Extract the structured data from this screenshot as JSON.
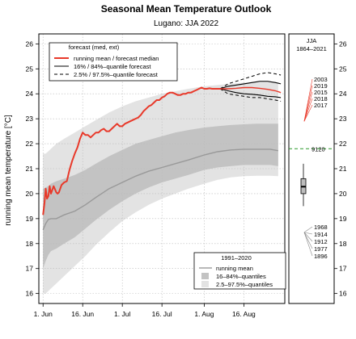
{
  "chart_data": {
    "type": "line",
    "title": "Seasonal Mean Temperature Outlook",
    "subtitle": "Lugano: JJA 2022",
    "ylabel": "running mean temperature [°C]",
    "ylim": [
      15.6,
      26.4
    ],
    "yticks": [
      16,
      17,
      18,
      19,
      20,
      21,
      22,
      23,
      24,
      25,
      26
    ],
    "xlim": [
      -1.6,
      91.5
    ],
    "x_ticks": [
      {
        "day": 0,
        "label": "1. Jun"
      },
      {
        "day": 15,
        "label": "16. Jun"
      },
      {
        "day": 30,
        "label": "1. Jul"
      },
      {
        "day": 45,
        "label": "16. Jul"
      },
      {
        "day": 61,
        "label": "1. Aug"
      },
      {
        "day": 76,
        "label": "16. Aug"
      }
    ],
    "legend_forecast": {
      "title": "forecast (med, ext)",
      "entries": [
        {
          "label": "running mean / forecast median",
          "color": "#e8392a",
          "style": "solid"
        },
        {
          "label": "16% / 84%–quantile forecast",
          "color": "#000000",
          "style": "solid"
        },
        {
          "label": "2.5% / 97.5%–quantile forecast",
          "color": "#000000",
          "style": "dashed"
        }
      ]
    },
    "legend_climate": {
      "title": "1991–2020",
      "entries": [
        {
          "label": "running mean",
          "color": "#999999",
          "kind": "line"
        },
        {
          "label": "16–84%–quantiles",
          "color": "#c3c3c3",
          "kind": "box"
        },
        {
          "label": "2.5–97.5%–quantiles",
          "color": "#e3e3e3",
          "kind": "box"
        }
      ]
    },
    "colors": {
      "observed": "#e8392a",
      "band_outer": "#e3e3e3",
      "band_inner": "#c3c3c3",
      "climate_mean": "#999999",
      "ref_line": "#2a9a2a",
      "rank_high": "#e8392a",
      "rank_low": "#888888",
      "grid": "#bbbbbb"
    },
    "climate": {
      "x": [
        0,
        1,
        2,
        3,
        5,
        8,
        12,
        16,
        20,
        25,
        30,
        35,
        40,
        45,
        50,
        55,
        61,
        66,
        71,
        76,
        81,
        86,
        89
      ],
      "mean": [
        18.55,
        18.8,
        18.97,
        19.0,
        19.0,
        19.15,
        19.3,
        19.55,
        19.85,
        20.2,
        20.45,
        20.7,
        20.9,
        21.05,
        21.2,
        21.35,
        21.55,
        21.68,
        21.75,
        21.78,
        21.78,
        21.78,
        21.72
      ],
      "q16": [
        17.0,
        17.3,
        17.55,
        17.7,
        17.8,
        18.0,
        18.25,
        18.6,
        18.95,
        19.35,
        19.7,
        20.0,
        20.25,
        20.45,
        20.6,
        20.75,
        20.95,
        21.05,
        21.1,
        21.15,
        21.15,
        21.15,
        21.1
      ],
      "q84": [
        20.2,
        20.25,
        20.3,
        20.4,
        20.5,
        20.6,
        20.75,
        20.95,
        21.2,
        21.5,
        21.75,
        22.0,
        22.15,
        22.3,
        22.45,
        22.55,
        22.65,
        22.7,
        22.75,
        22.78,
        22.8,
        22.8,
        22.8
      ],
      "q025": [
        16.0,
        16.0,
        16.1,
        16.2,
        16.4,
        16.7,
        17.1,
        17.5,
        17.95,
        18.45,
        18.9,
        19.25,
        19.55,
        19.8,
        20.0,
        20.2,
        20.4,
        20.55,
        20.65,
        20.7,
        20.72,
        20.72,
        20.7
      ],
      "q975": [
        21.6,
        21.6,
        21.7,
        21.8,
        22.0,
        22.2,
        22.45,
        22.7,
        22.95,
        23.25,
        23.5,
        23.7,
        23.85,
        24.0,
        24.1,
        24.2,
        24.3,
        24.35,
        24.4,
        24.45,
        24.45,
        24.45,
        24.45
      ]
    },
    "observed": {
      "x": [
        0,
        0.5,
        1,
        1.5,
        2,
        2.5,
        3,
        4,
        5,
        5.5,
        6,
        7,
        8,
        9,
        10,
        11,
        12,
        13,
        14,
        15,
        16,
        17,
        18,
        19,
        20,
        21,
        22,
        23,
        24,
        25,
        26,
        27,
        28,
        29,
        30,
        31,
        32,
        33,
        34,
        35,
        36,
        37,
        38,
        39,
        40,
        41,
        42,
        43,
        44,
        45,
        46,
        47,
        48,
        49,
        50,
        51,
        52,
        53,
        54,
        55,
        56,
        57,
        58,
        59,
        60,
        61,
        62,
        63,
        64,
        65,
        66,
        67
      ],
      "y": [
        19.15,
        19.6,
        20.2,
        19.8,
        19.9,
        20.3,
        20.0,
        20.3,
        20.05,
        20.0,
        20.05,
        20.35,
        20.45,
        20.5,
        20.95,
        21.3,
        21.6,
        21.85,
        22.2,
        22.45,
        22.35,
        22.35,
        22.25,
        22.35,
        22.45,
        22.45,
        22.55,
        22.6,
        22.5,
        22.5,
        22.6,
        22.7,
        22.8,
        22.7,
        22.7,
        22.8,
        22.85,
        22.9,
        22.95,
        23.0,
        23.05,
        23.15,
        23.3,
        23.4,
        23.5,
        23.55,
        23.65,
        23.75,
        23.75,
        23.85,
        23.9,
        24.0,
        24.05,
        24.05,
        24.0,
        23.95,
        23.95,
        24.0,
        24.0,
        24.05,
        24.05,
        24.1,
        24.15,
        24.2,
        24.25,
        24.2,
        24.2,
        24.22,
        24.2,
        24.2,
        24.2,
        24.2
      ]
    },
    "forecast": {
      "x": [
        67,
        70,
        73,
        76,
        79,
        82,
        85,
        88,
        90
      ],
      "median": [
        24.2,
        24.2,
        24.22,
        24.25,
        24.25,
        24.22,
        24.18,
        24.12,
        24.05
      ],
      "q16": [
        24.2,
        24.12,
        24.05,
        24.0,
        23.98,
        23.95,
        23.9,
        23.88,
        23.85
      ],
      "q84": [
        24.2,
        24.3,
        24.35,
        24.4,
        24.45,
        24.5,
        24.5,
        24.45,
        24.4
      ],
      "q025": [
        24.2,
        24.0,
        23.95,
        23.9,
        23.85,
        23.85,
        23.8,
        23.75,
        23.7
      ],
      "q975": [
        24.2,
        24.4,
        24.5,
        24.6,
        24.7,
        24.8,
        24.85,
        24.8,
        24.75
      ]
    },
    "side_panel": {
      "title": "JJA",
      "subtitle": "1864–2021",
      "reference_value": 21.8,
      "reference_label": "9120",
      "box": {
        "whisker_low": 19.5,
        "q1": 20.0,
        "median": 20.28,
        "q3": 20.6,
        "whisker_high": 21.2
      },
      "top_years": [
        {
          "year": "2003",
          "value": 24.2
        },
        {
          "year": "2019",
          "value": 23.65
        },
        {
          "year": "2015",
          "value": 23.45
        },
        {
          "year": "2018",
          "value": 23.3
        },
        {
          "year": "2017",
          "value": 23.1
        }
      ],
      "bottom_years": [
        {
          "year": "1968",
          "value": 18.6
        },
        {
          "year": "1914",
          "value": 18.5
        },
        {
          "year": "1912",
          "value": 18.5
        },
        {
          "year": "1977",
          "value": 18.45
        },
        {
          "year": "1896",
          "value": 18.4
        }
      ]
    }
  }
}
